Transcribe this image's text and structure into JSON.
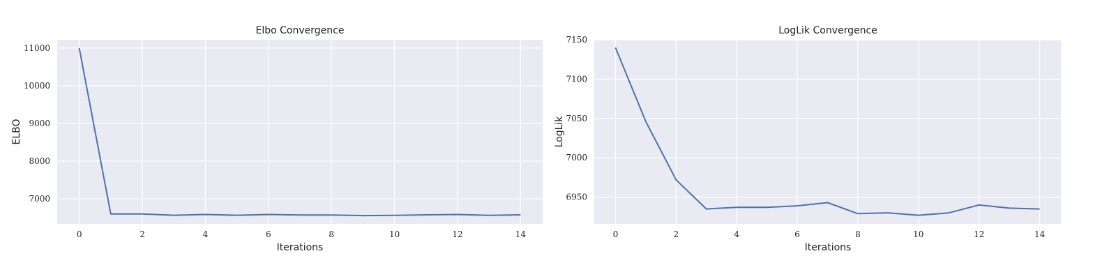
{
  "chart_data": [
    {
      "type": "line",
      "title": "Elbo Convergence",
      "xlabel": "Iterations",
      "ylabel": "ELBO",
      "x": [
        0,
        1,
        2,
        3,
        4,
        5,
        6,
        7,
        8,
        9,
        10,
        11,
        12,
        13,
        14
      ],
      "series": [
        {
          "values": [
            11000,
            6600,
            6600,
            6565,
            6585,
            6565,
            6585,
            6570,
            6570,
            6555,
            6560,
            6575,
            6585,
            6560,
            6575
          ]
        }
      ],
      "xticks": [
        0,
        2,
        4,
        6,
        8,
        10,
        12,
        14
      ],
      "yticks": [
        7000,
        8000,
        9000,
        10000,
        11000
      ],
      "xlim": [
        -0.7,
        14.7
      ],
      "ylim": [
        6335,
        11220
      ],
      "grid": true,
      "color": "#4c72b0"
    },
    {
      "type": "line",
      "title": "LogLik Convergence",
      "xlabel": "Iterations",
      "ylabel": "LogLik",
      "x": [
        0,
        1,
        2,
        3,
        4,
        5,
        6,
        7,
        8,
        9,
        10,
        11,
        12,
        13,
        14
      ],
      "series": [
        {
          "values": [
            7140,
            7046,
            6972,
            6935,
            6937,
            6937,
            6939,
            6943,
            6929,
            6930,
            6927,
            6930,
            6940,
            6936,
            6935
          ]
        }
      ],
      "xticks": [
        0,
        2,
        4,
        6,
        8,
        10,
        12,
        14
      ],
      "yticks": [
        6950,
        7000,
        7050,
        7100,
        7150
      ],
      "xlim": [
        -0.7,
        14.7
      ],
      "ylim": [
        6916,
        7150
      ],
      "grid": true,
      "color": "#4c72b0"
    }
  ]
}
